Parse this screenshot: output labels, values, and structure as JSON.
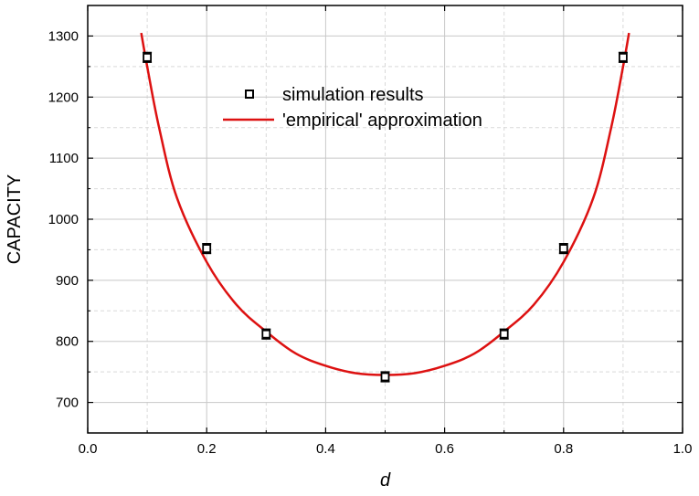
{
  "chart_data": {
    "type": "scatter",
    "xlabel": "d",
    "ylabel": "CAPACITY",
    "xlim": [
      0.0,
      1.0
    ],
    "ylim": [
      650,
      1350
    ],
    "x_ticks": [
      "0.0",
      "0.2",
      "0.4",
      "0.6",
      "0.8",
      "1.0"
    ],
    "y_ticks": [
      "700",
      "800",
      "900",
      "1000",
      "1100",
      "1200",
      "1300"
    ],
    "grid": true,
    "legend_position": "upper-center",
    "series": [
      {
        "name": "simulation results",
        "kind": "points",
        "marker": "open-square",
        "color": "#000000",
        "x": [
          0.1,
          0.2,
          0.3,
          0.5,
          0.7,
          0.8,
          0.9
        ],
        "y": [
          1265,
          952,
          812,
          742,
          812,
          952,
          1265
        ],
        "error": [
          8,
          8,
          8,
          8,
          8,
          8,
          8
        ]
      },
      {
        "name": "'empirical' approximation",
        "kind": "line",
        "color": "#dd1111",
        "x": [
          0.09,
          0.1,
          0.12,
          0.15,
          0.2,
          0.25,
          0.3,
          0.35,
          0.4,
          0.45,
          0.5,
          0.55,
          0.6,
          0.65,
          0.7,
          0.75,
          0.8,
          0.85,
          0.88,
          0.9,
          0.91
        ],
        "y": [
          1305,
          1250,
          1150,
          1035,
          930,
          860,
          816,
          780,
          760,
          748,
          745,
          748,
          760,
          780,
          816,
          860,
          930,
          1035,
          1150,
          1250,
          1305
        ]
      }
    ]
  }
}
